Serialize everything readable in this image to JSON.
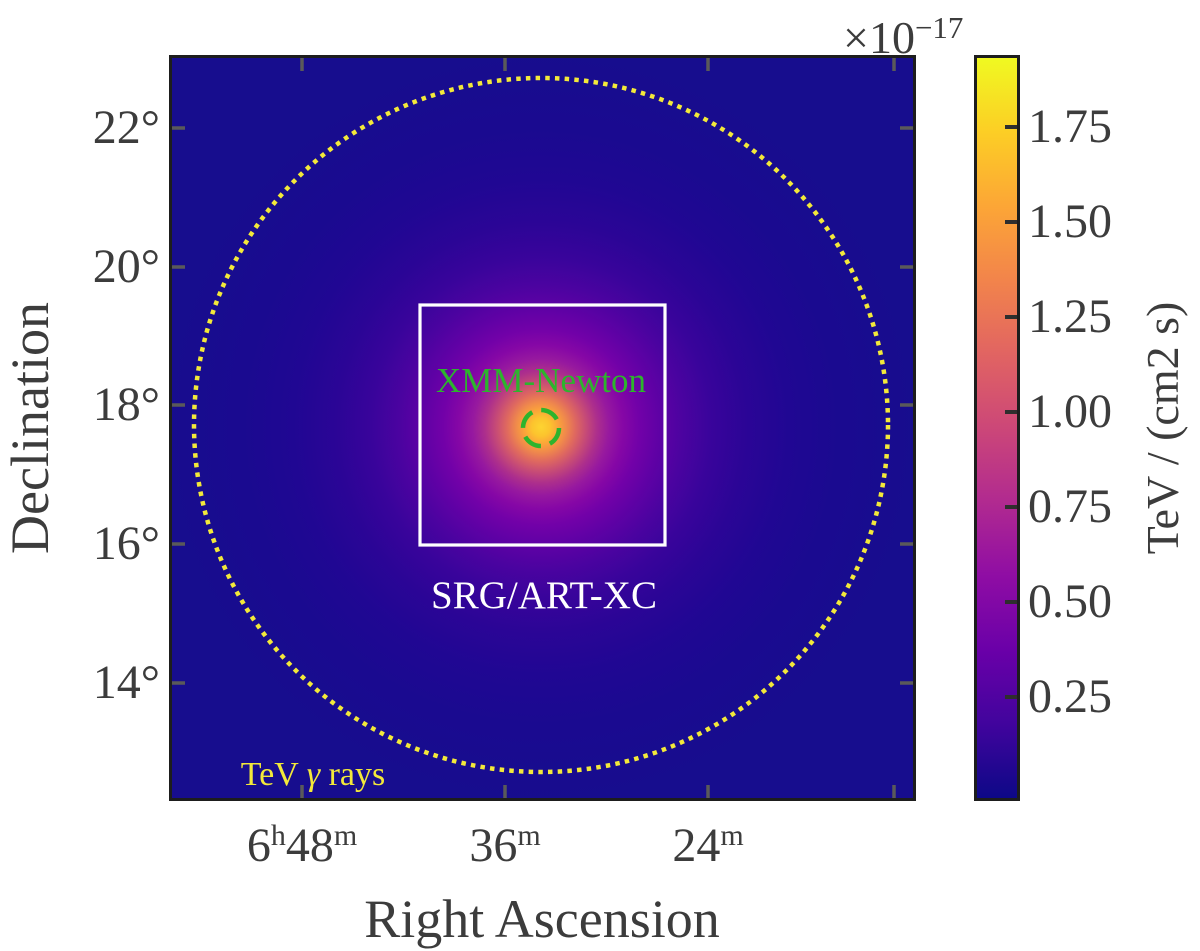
{
  "figure": {
    "xlabel": "Right Ascension",
    "ylabel": "Declination",
    "x_ticks": [
      {
        "parts": [
          {
            "t": "6"
          },
          {
            "t": "h",
            "sup": true
          },
          {
            "t": "48"
          },
          {
            "t": "m",
            "sup": true
          }
        ]
      },
      {
        "parts": [
          {
            "t": "36"
          },
          {
            "t": "m",
            "sup": true
          }
        ]
      },
      {
        "parts": [
          {
            "t": "24"
          },
          {
            "t": "m",
            "sup": true
          }
        ]
      }
    ],
    "y_ticks": [
      "22°",
      "20°",
      "18°",
      "16°",
      "14°"
    ]
  },
  "colorbar": {
    "offset": {
      "base": "×10",
      "exp": "−17"
    },
    "tick_labels": [
      "1.75",
      "1.50",
      "1.25",
      "1.00",
      "0.75",
      "0.50",
      "0.25"
    ],
    "label": "TeV / (cm2 s)",
    "colormap": "plasma",
    "top_color": "#f0f921",
    "bottom_color": "#0d0887"
  },
  "annotations": {
    "xmm": {
      "label": "XMM-Newton",
      "color": "#2db42d",
      "shape": "dashed-circle"
    },
    "artxc": {
      "label": "SRG/ART-XC",
      "color": "#ffffff",
      "shape": "solid-square"
    },
    "tev": {
      "label": "TeV γ rays",
      "color": "#f3e93a",
      "shape": "dotted-circle",
      "label_parts": [
        {
          "t": "TeV "
        },
        {
          "t": "γ",
          "italic": true
        },
        {
          "t": " rays"
        }
      ]
    }
  },
  "chart_data": {
    "type": "heatmap",
    "title": "",
    "xlabel": "Right Ascension",
    "ylabel": "Declination",
    "x_tick_labels": [
      "6h48m",
      "36m",
      "24m"
    ],
    "y_tick_labels": [
      "22°",
      "20°",
      "18°",
      "16°",
      "14°"
    ],
    "x_axis": {
      "quantity": "Right Ascension",
      "direction": "RA increases leftward",
      "visible_range": [
        "≈6h56m",
        "≈6h12m"
      ]
    },
    "y_axis": {
      "quantity": "Declination",
      "visible_range_deg": [
        12.4,
        23.0
      ]
    },
    "colormap": "plasma",
    "grid": false,
    "legend": false,
    "colorbar": {
      "label": "TeV / (cm2 s)",
      "scale_factor": "×10−17",
      "tick_values": [
        0.25,
        0.5,
        0.75,
        1.0,
        1.25,
        1.5,
        1.75
      ],
      "value_range_1e-17": [
        0,
        1.93
      ]
    },
    "source": {
      "description": "single bright point-like gamma-ray source with Gaussian-looking halo",
      "ra": "≈6h34m",
      "dec": "≈17.7°",
      "peak_intensity_1e-17_TeV_per_cm2_s": 1.93
    },
    "regions": [
      {
        "label": "TeV γ rays",
        "style": "dotted circle",
        "color": "yellow",
        "center": {
          "ra": "≈6h34m",
          "dec": "≈17.7°"
        },
        "radius_deg": 5.0
      },
      {
        "label": "SRG/ART-XC",
        "style": "solid square",
        "color": "white",
        "center": {
          "ra": "≈6h34m",
          "dec": "≈17.7°"
        },
        "size_deg": 3.5
      },
      {
        "label": "XMM-Newton",
        "style": "dashed circle",
        "color": "green",
        "center": {
          "ra": "≈6h34m",
          "dec": "≈17.7°"
        },
        "radius_deg": 0.26
      }
    ]
  }
}
